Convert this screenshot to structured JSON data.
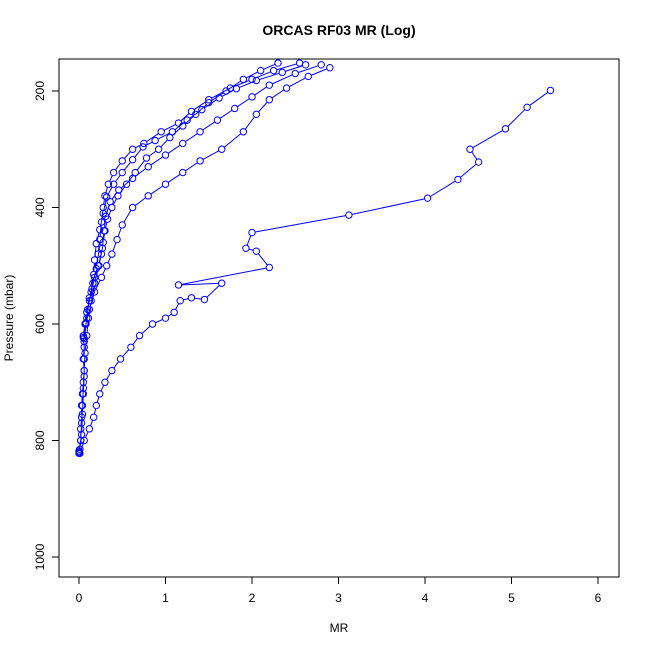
{
  "chart_data": {
    "type": "scatter",
    "title": "ORCAS RF03 MR (Log)",
    "xlabel": "MR",
    "ylabel": "Pressure (mbar)",
    "xlim": [
      0,
      6
    ],
    "ylim": [
      1000,
      150
    ],
    "y_axis_inverted": true,
    "grid": false,
    "legend": "none",
    "x_ticks": [
      "0",
      "1",
      "2",
      "3",
      "4",
      "5",
      "6"
    ],
    "y_ticks": [
      "200",
      "400",
      "600",
      "800",
      "1000"
    ],
    "colors": {
      "series": "#0000ff",
      "axis": "#000000"
    },
    "series": [
      {
        "points": [
          [
            0.0,
            822
          ],
          [
            0.01,
            815
          ],
          [
            0.02,
            800
          ],
          [
            0.02,
            780
          ],
          [
            0.03,
            760
          ],
          [
            0.03,
            740
          ],
          [
            0.04,
            720
          ],
          [
            0.05,
            700
          ],
          [
            0.06,
            680
          ],
          [
            0.05,
            660
          ],
          [
            0.06,
            640
          ],
          [
            0.05,
            620
          ],
          [
            0.07,
            600
          ],
          [
            0.09,
            580
          ],
          [
            0.12,
            560
          ],
          [
            0.15,
            540
          ],
          [
            0.18,
            520
          ],
          [
            0.22,
            500
          ],
          [
            0.26,
            480
          ],
          [
            0.28,
            460
          ],
          [
            0.3,
            440
          ],
          [
            0.33,
            420
          ],
          [
            0.38,
            400
          ],
          [
            0.45,
            380
          ],
          [
            0.55,
            360
          ],
          [
            0.65,
            340
          ],
          [
            0.78,
            315
          ],
          [
            0.92,
            300
          ],
          [
            1.05,
            280
          ],
          [
            1.2,
            260
          ],
          [
            1.35,
            240
          ],
          [
            1.5,
            220
          ],
          [
            1.7,
            200
          ],
          [
            1.9,
            180
          ],
          [
            2.1,
            165
          ],
          [
            2.3,
            152
          ]
        ]
      },
      {
        "points": [
          [
            0.0,
            820
          ],
          [
            0.02,
            800
          ],
          [
            0.03,
            770
          ],
          [
            0.04,
            740
          ],
          [
            0.05,
            710
          ],
          [
            0.06,
            680
          ],
          [
            0.07,
            650
          ],
          [
            0.09,
            620
          ],
          [
            0.11,
            590
          ],
          [
            0.14,
            560
          ],
          [
            0.18,
            530
          ],
          [
            0.23,
            500
          ],
          [
            0.27,
            470
          ],
          [
            0.29,
            440
          ],
          [
            0.31,
            415
          ],
          [
            0.36,
            390
          ],
          [
            0.46,
            370
          ],
          [
            0.62,
            350
          ],
          [
            0.8,
            330
          ],
          [
            1.0,
            310
          ],
          [
            1.2,
            290
          ],
          [
            1.4,
            270
          ],
          [
            1.6,
            250
          ],
          [
            1.8,
            230
          ],
          [
            2.0,
            210
          ],
          [
            2.2,
            190
          ],
          [
            2.5,
            170
          ],
          [
            2.8,
            155
          ]
        ]
      },
      {
        "points": [
          [
            0.0,
            818
          ],
          [
            0.03,
            790
          ],
          [
            0.04,
            755
          ],
          [
            0.05,
            720
          ],
          [
            0.06,
            690
          ],
          [
            0.06,
            660
          ],
          [
            0.06,
            630
          ],
          [
            0.08,
            600
          ],
          [
            0.12,
            575
          ],
          [
            0.18,
            545
          ],
          [
            0.26,
            520
          ],
          [
            0.32,
            500
          ],
          [
            0.38,
            480
          ],
          [
            0.44,
            455
          ],
          [
            0.5,
            430
          ],
          [
            0.62,
            400
          ],
          [
            0.8,
            380
          ],
          [
            1.0,
            360
          ],
          [
            1.2,
            340
          ],
          [
            1.4,
            320
          ],
          [
            1.65,
            300
          ],
          [
            1.9,
            270
          ],
          [
            2.05,
            240
          ],
          [
            2.2,
            215
          ],
          [
            2.4,
            195
          ],
          [
            2.65,
            175
          ],
          [
            2.9,
            160
          ]
        ]
      },
      {
        "points": [
          [
            0.06,
            625
          ],
          [
            0.09,
            590
          ],
          [
            0.12,
            555
          ],
          [
            0.16,
            530
          ],
          [
            0.2,
            505
          ],
          [
            0.22,
            480
          ],
          [
            0.24,
            455
          ],
          [
            0.26,
            425
          ],
          [
            0.28,
            400
          ],
          [
            0.3,
            380
          ],
          [
            0.34,
            360
          ],
          [
            0.4,
            340
          ],
          [
            0.5,
            320
          ],
          [
            0.62,
            300
          ],
          [
            0.75,
            290
          ],
          [
            0.95,
            270
          ],
          [
            1.15,
            255
          ],
          [
            1.3,
            235
          ],
          [
            1.5,
            215
          ],
          [
            1.75,
            195
          ],
          [
            2.0,
            180
          ],
          [
            2.25,
            165
          ],
          [
            2.55,
            152
          ]
        ]
      },
      {
        "points": [
          [
            0.01,
            822
          ],
          [
            0.06,
            800
          ],
          [
            0.12,
            780
          ],
          [
            0.17,
            760
          ],
          [
            0.2,
            740
          ],
          [
            0.24,
            720
          ],
          [
            0.3,
            700
          ],
          [
            0.38,
            680
          ],
          [
            0.48,
            660
          ],
          [
            0.6,
            640
          ],
          [
            0.7,
            620
          ],
          [
            0.85,
            600
          ],
          [
            1.0,
            590
          ],
          [
            1.1,
            580
          ],
          [
            1.17,
            560
          ],
          [
            1.3,
            555
          ],
          [
            1.45,
            558
          ],
          [
            1.65,
            530
          ],
          [
            1.15,
            533
          ],
          [
            2.2,
            503
          ],
          [
            2.05,
            475
          ],
          [
            1.93,
            470
          ],
          [
            2.0,
            443
          ],
          [
            3.12,
            413
          ],
          [
            4.03,
            384
          ],
          [
            4.38,
            352
          ],
          [
            4.62,
            322
          ],
          [
            4.52,
            300
          ],
          [
            4.93,
            265
          ],
          [
            5.18,
            228
          ],
          [
            5.45,
            199
          ]
        ]
      },
      {
        "points": [
          [
            0.05,
            623
          ],
          [
            0.08,
            598
          ],
          [
            0.1,
            575
          ],
          [
            0.14,
            545
          ],
          [
            0.17,
            515
          ],
          [
            0.18,
            490
          ],
          [
            0.2,
            462
          ],
          [
            0.24,
            438
          ],
          [
            0.28,
            410
          ],
          [
            0.32,
            382
          ],
          [
            0.4,
            360
          ],
          [
            0.5,
            340
          ],
          [
            0.62,
            318
          ],
          [
            0.74,
            296
          ],
          [
            0.88,
            285
          ],
          [
            1.08,
            270
          ],
          [
            1.25,
            250
          ],
          [
            1.42,
            232
          ],
          [
            1.62,
            212
          ],
          [
            1.82,
            196
          ],
          [
            2.05,
            182
          ],
          [
            2.35,
            168
          ],
          [
            2.62,
            155
          ]
        ]
      }
    ]
  }
}
